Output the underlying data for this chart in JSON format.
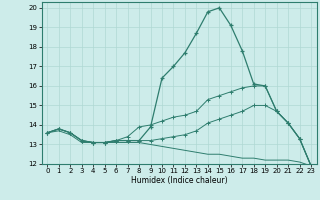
{
  "background_color": "#cdecea",
  "grid_color": "#b0d8d4",
  "line_color": "#2e7d6e",
  "xlabel": "Humidex (Indice chaleur)",
  "xlim": [
    -0.5,
    23.5
  ],
  "ylim": [
    12,
    20.3
  ],
  "yticks": [
    12,
    13,
    14,
    15,
    16,
    17,
    18,
    19,
    20
  ],
  "xticks": [
    0,
    1,
    2,
    3,
    4,
    5,
    6,
    7,
    8,
    9,
    10,
    11,
    12,
    13,
    14,
    15,
    16,
    17,
    18,
    19,
    20,
    21,
    22,
    23
  ],
  "series": {
    "line1_x": [
      0,
      1,
      2,
      3,
      4,
      5,
      6,
      7,
      8,
      9,
      10,
      11,
      12,
      13,
      14,
      15,
      16,
      17,
      18,
      19,
      20,
      21,
      22,
      23
    ],
    "line1_y": [
      13.6,
      13.8,
      13.6,
      13.2,
      13.1,
      13.1,
      13.2,
      13.2,
      13.2,
      13.9,
      16.4,
      17.0,
      17.7,
      18.7,
      19.8,
      20.0,
      19.1,
      17.8,
      16.1,
      16.0,
      14.7,
      14.1,
      13.3,
      11.9
    ],
    "line2_x": [
      0,
      1,
      2,
      3,
      4,
      5,
      6,
      7,
      8,
      9,
      10,
      11,
      12,
      13,
      14,
      15,
      16,
      17,
      18,
      19,
      20,
      21,
      22,
      23
    ],
    "line2_y": [
      13.6,
      13.8,
      13.6,
      13.2,
      13.1,
      13.1,
      13.2,
      13.4,
      13.9,
      14.0,
      14.2,
      14.4,
      14.5,
      14.7,
      15.3,
      15.5,
      15.7,
      15.9,
      16.0,
      16.0,
      14.7,
      14.1,
      13.3,
      11.9
    ],
    "line3_x": [
      0,
      1,
      2,
      3,
      4,
      5,
      6,
      7,
      8,
      9,
      10,
      11,
      12,
      13,
      14,
      15,
      16,
      17,
      18,
      19,
      20,
      21,
      22,
      23
    ],
    "line3_y": [
      13.6,
      13.8,
      13.6,
      13.2,
      13.1,
      13.1,
      13.2,
      13.2,
      13.2,
      13.2,
      13.3,
      13.4,
      13.5,
      13.7,
      14.1,
      14.3,
      14.5,
      14.7,
      15.0,
      15.0,
      14.7,
      14.1,
      13.3,
      11.9
    ],
    "line4_x": [
      0,
      1,
      2,
      3,
      4,
      5,
      6,
      7,
      8,
      9,
      10,
      11,
      12,
      13,
      14,
      15,
      16,
      17,
      18,
      19,
      20,
      21,
      22,
      23
    ],
    "line4_y": [
      13.6,
      13.7,
      13.5,
      13.1,
      13.1,
      13.1,
      13.1,
      13.1,
      13.1,
      13.0,
      12.9,
      12.8,
      12.7,
      12.6,
      12.5,
      12.5,
      12.4,
      12.3,
      12.3,
      12.2,
      12.2,
      12.2,
      12.1,
      11.9
    ]
  }
}
